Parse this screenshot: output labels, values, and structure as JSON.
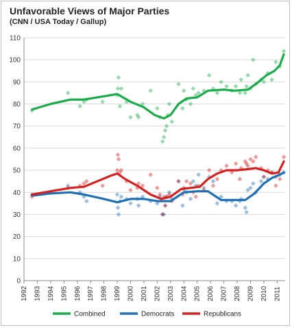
{
  "chart_data": {
    "type": "scatter",
    "title": "Unfavorable Views of Major Parties",
    "subtitle": "(CNN / USA Today / Gallup)",
    "xlim": [
      1992,
      2011.6
    ],
    "ylim": [
      0,
      110
    ],
    "x_ticks": [
      1992,
      1993,
      1994,
      1995,
      1996,
      1997,
      1998,
      1999,
      2000,
      2001,
      2002,
      2003,
      2004,
      2005,
      2006,
      2007,
      2008,
      2009,
      2010,
      2011
    ],
    "y_ticks": [
      0,
      10,
      20,
      30,
      40,
      50,
      60,
      70,
      80,
      90,
      100,
      110
    ],
    "legend_position": "bottom",
    "series": [
      {
        "name": "Combined",
        "color": "#1aab4a",
        "points": [
          [
            1992.6,
            77
          ],
          [
            1995.3,
            85
          ],
          [
            1996.2,
            79
          ],
          [
            1996.5,
            81
          ],
          [
            1996.7,
            82
          ],
          [
            1997.9,
            81
          ],
          [
            1999.0,
            84
          ],
          [
            1999.05,
            87
          ],
          [
            1999.1,
            92
          ],
          [
            1999.2,
            79
          ],
          [
            1999.3,
            87
          ],
          [
            1999.7,
            81
          ],
          [
            2000.0,
            74
          ],
          [
            2000.5,
            75
          ],
          [
            2000.6,
            74
          ],
          [
            2000.9,
            80
          ],
          [
            2001.5,
            86
          ],
          [
            2002.0,
            78
          ],
          [
            2002.2,
            74
          ],
          [
            2002.4,
            63
          ],
          [
            2002.5,
            65
          ],
          [
            2002.6,
            68
          ],
          [
            2002.7,
            70
          ],
          [
            2002.8,
            75
          ],
          [
            2002.9,
            80
          ],
          [
            2003.1,
            72
          ],
          [
            2003.6,
            89
          ],
          [
            2003.9,
            78
          ],
          [
            2004.0,
            86
          ],
          [
            2004.2,
            82
          ],
          [
            2004.5,
            80
          ],
          [
            2004.7,
            87
          ],
          [
            2004.9,
            84
          ],
          [
            2005.1,
            85
          ],
          [
            2005.5,
            86
          ],
          [
            2005.9,
            93
          ],
          [
            2006.2,
            87
          ],
          [
            2006.5,
            85
          ],
          [
            2006.8,
            90
          ],
          [
            2007.2,
            88
          ],
          [
            2007.6,
            86
          ],
          [
            2007.9,
            88
          ],
          [
            2008.2,
            85
          ],
          [
            2008.3,
            91
          ],
          [
            2008.6,
            85
          ],
          [
            2008.7,
            88
          ],
          [
            2008.8,
            93
          ],
          [
            2009.0,
            87
          ],
          [
            2009.2,
            100
          ],
          [
            2009.4,
            89
          ],
          [
            2009.8,
            91
          ],
          [
            2010.0,
            90
          ],
          [
            2010.3,
            94
          ],
          [
            2010.6,
            91
          ],
          [
            2010.9,
            99
          ],
          [
            2011.2,
            97
          ],
          [
            2011.5,
            104
          ]
        ],
        "trend": [
          [
            1992.6,
            77.5
          ],
          [
            1994,
            80
          ],
          [
            1995.5,
            82
          ],
          [
            1996.5,
            82
          ],
          [
            1998,
            83.5
          ],
          [
            1999,
            84.5
          ],
          [
            2000,
            81
          ],
          [
            2001,
            78.5
          ],
          [
            2001.8,
            75
          ],
          [
            2002.5,
            73.5
          ],
          [
            2003,
            75
          ],
          [
            2003.6,
            80
          ],
          [
            2004.2,
            82.5
          ],
          [
            2005,
            83
          ],
          [
            2005.8,
            86
          ],
          [
            2007,
            86.5
          ],
          [
            2007.8,
            86
          ],
          [
            2008.8,
            86.5
          ],
          [
            2009.5,
            89.5
          ],
          [
            2010.2,
            93
          ],
          [
            2010.8,
            95
          ],
          [
            2011.2,
            97.5
          ],
          [
            2011.5,
            102.5
          ]
        ]
      },
      {
        "name": "Democrats",
        "color": "#1f6fb4",
        "points": [
          [
            1992.6,
            39
          ],
          [
            1995.3,
            43
          ],
          [
            1996.2,
            40
          ],
          [
            1996.5,
            38
          ],
          [
            1996.7,
            36
          ],
          [
            1999.0,
            39
          ],
          [
            1999.05,
            33
          ],
          [
            1999.1,
            30
          ],
          [
            1999.2,
            36
          ],
          [
            1999.3,
            38
          ],
          [
            1999.7,
            37
          ],
          [
            2000.0,
            35
          ],
          [
            2000.5,
            37
          ],
          [
            2000.6,
            34
          ],
          [
            2000.9,
            38
          ],
          [
            2001.5,
            36
          ],
          [
            2002.0,
            35
          ],
          [
            2002.2,
            38
          ],
          [
            2002.4,
            30
          ],
          [
            2002.5,
            30
          ],
          [
            2002.6,
            34
          ],
          [
            2002.7,
            38
          ],
          [
            2002.9,
            40
          ],
          [
            2003.1,
            37
          ],
          [
            2003.6,
            45
          ],
          [
            2003.9,
            34
          ],
          [
            2004.0,
            41
          ],
          [
            2004.2,
            40
          ],
          [
            2004.5,
            37
          ],
          [
            2004.7,
            45
          ],
          [
            2004.9,
            43
          ],
          [
            2005.1,
            48
          ],
          [
            2005.5,
            42
          ],
          [
            2005.9,
            47
          ],
          [
            2006.2,
            45
          ],
          [
            2006.5,
            35
          ],
          [
            2006.8,
            38
          ],
          [
            2007.2,
            36
          ],
          [
            2007.6,
            36
          ],
          [
            2007.9,
            34
          ],
          [
            2008.2,
            36
          ],
          [
            2008.3,
            37
          ],
          [
            2008.6,
            33
          ],
          [
            2008.7,
            31
          ],
          [
            2008.8,
            41
          ],
          [
            2009.0,
            42
          ],
          [
            2009.2,
            44
          ],
          [
            2009.4,
            40
          ],
          [
            2009.8,
            45
          ],
          [
            2010.0,
            47
          ],
          [
            2010.3,
            46
          ],
          [
            2010.6,
            49
          ],
          [
            2010.9,
            47
          ],
          [
            2011.2,
            48
          ],
          [
            2011.5,
            49
          ]
        ],
        "trend": [
          [
            1992.6,
            38.5
          ],
          [
            1994,
            39.5
          ],
          [
            1995.5,
            40
          ],
          [
            1996.5,
            39
          ],
          [
            1998,
            37
          ],
          [
            1999,
            35.5
          ],
          [
            2000,
            37
          ],
          [
            2001,
            37
          ],
          [
            2002,
            36
          ],
          [
            2003,
            36
          ],
          [
            2004,
            40
          ],
          [
            2005,
            40.5
          ],
          [
            2005.8,
            40.5
          ],
          [
            2006.8,
            36.5
          ],
          [
            2008,
            36.5
          ],
          [
            2008.6,
            36.5
          ],
          [
            2009.3,
            39.5
          ],
          [
            2010,
            44
          ],
          [
            2010.6,
            46.5
          ],
          [
            2011.2,
            48
          ],
          [
            2011.5,
            49
          ]
        ]
      },
      {
        "name": "Republicans",
        "color": "#d62020",
        "points": [
          [
            1992.6,
            38
          ],
          [
            1995.3,
            42
          ],
          [
            1996.2,
            43
          ],
          [
            1996.5,
            44
          ],
          [
            1996.7,
            45
          ],
          [
            1997.9,
            43
          ],
          [
            1999.0,
            50
          ],
          [
            1999.05,
            57
          ],
          [
            1999.1,
            55
          ],
          [
            1999.2,
            49
          ],
          [
            1999.3,
            50
          ],
          [
            1999.7,
            45
          ],
          [
            2000.0,
            41
          ],
          [
            2000.5,
            42
          ],
          [
            2000.6,
            44
          ],
          [
            2000.9,
            43
          ],
          [
            2001.5,
            48
          ],
          [
            2002.0,
            42
          ],
          [
            2002.2,
            39
          ],
          [
            2002.4,
            30
          ],
          [
            2002.5,
            38
          ],
          [
            2002.6,
            34
          ],
          [
            2002.7,
            38
          ],
          [
            2002.9,
            39
          ],
          [
            2003.1,
            36
          ],
          [
            2003.6,
            45
          ],
          [
            2003.9,
            39
          ],
          [
            2004.0,
            42
          ],
          [
            2004.2,
            45
          ],
          [
            2004.5,
            44
          ],
          [
            2004.7,
            40
          ],
          [
            2004.9,
            38
          ],
          [
            2005.1,
            43
          ],
          [
            2005.5,
            41
          ],
          [
            2005.9,
            50
          ],
          [
            2006.2,
            43
          ],
          [
            2006.5,
            46
          ],
          [
            2006.8,
            50
          ],
          [
            2007.2,
            52
          ],
          [
            2007.6,
            49
          ],
          [
            2007.9,
            53
          ],
          [
            2008.2,
            46
          ],
          [
            2008.3,
            51
          ],
          [
            2008.6,
            54
          ],
          [
            2008.7,
            53
          ],
          [
            2008.8,
            52
          ],
          [
            2009.0,
            55
          ],
          [
            2009.2,
            54
          ],
          [
            2009.4,
            56
          ],
          [
            2009.8,
            51
          ],
          [
            2010.0,
            47
          ],
          [
            2010.3,
            50
          ],
          [
            2010.6,
            49
          ],
          [
            2010.9,
            43
          ],
          [
            2011.2,
            46
          ],
          [
            2011.5,
            56
          ]
        ],
        "trend": [
          [
            1992.6,
            39
          ],
          [
            1994,
            40.5
          ],
          [
            1995.5,
            42
          ],
          [
            1996.5,
            42.5
          ],
          [
            1997.5,
            45
          ],
          [
            1998.5,
            47.5
          ],
          [
            1999,
            48.5
          ],
          [
            1999.6,
            46
          ],
          [
            2000.5,
            43
          ],
          [
            2001.5,
            39
          ],
          [
            2002.3,
            37
          ],
          [
            2003,
            38
          ],
          [
            2003.8,
            41.5
          ],
          [
            2004.5,
            42
          ],
          [
            2005.2,
            42.5
          ],
          [
            2005.8,
            46
          ],
          [
            2006.5,
            48.5
          ],
          [
            2007.2,
            50
          ],
          [
            2008,
            50
          ],
          [
            2008.8,
            50.5
          ],
          [
            2009.4,
            51
          ],
          [
            2010,
            50
          ],
          [
            2010.6,
            48.5
          ],
          [
            2011.1,
            49
          ],
          [
            2011.5,
            54
          ]
        ]
      }
    ]
  }
}
